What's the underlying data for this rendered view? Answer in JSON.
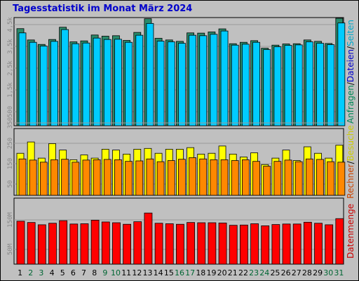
{
  "chart_data": {
    "title": "Tagesstatistik im Monat März 2024",
    "type": "bar",
    "days": [
      "1",
      "2",
      "3",
      "4",
      "5",
      "6",
      "7",
      "8",
      "9",
      "10",
      "11",
      "12",
      "13",
      "14",
      "15",
      "16",
      "17",
      "18",
      "19",
      "20",
      "21",
      "22",
      "23",
      "24",
      "25",
      "26",
      "27",
      "28",
      "29",
      "30",
      "31"
    ],
    "weekend_days": [
      "2",
      "3",
      "9",
      "10",
      "16",
      "17",
      "23",
      "24",
      "30",
      "31"
    ],
    "day_colors": {
      "weekday": "#000000",
      "weekend": "#006633"
    },
    "panels": [
      {
        "name": "top",
        "right_label": {
          "parts": [
            "Anfragen",
            "/",
            "Dateien",
            "/",
            "Seiten"
          ],
          "colors": [
            "#008855",
            "#000000",
            "#0000cc",
            "#000000",
            "#00aacc"
          ]
        },
        "ylim": [
          0,
          4500
        ],
        "yticks": [
          "500",
          "1,5k",
          "2,5k",
          "3,5k",
          "4,5k"
        ],
        "series": [
          {
            "name": "Anfragen",
            "color": "#2a8a6a",
            "values": [
              4120,
              3640,
              3450,
              3660,
              4180,
              3560,
              3600,
              3850,
              3800,
              3820,
              3620,
              3960,
              4540,
              3710,
              3640,
              3580,
              3940,
              3930,
              3980,
              4110,
              3480,
              3540,
              3610,
              3290,
              3420,
              3470,
              3480,
              3640,
              3580,
              3490,
              4560
            ]
          },
          {
            "name": "Dateien",
            "color": "#00ccff",
            "values": [
              3940,
              3540,
              3380,
              3580,
              4080,
              3480,
              3510,
              3720,
              3660,
              3670,
              3540,
              3840,
              4340,
              3590,
              3560,
              3500,
              3840,
              3820,
              3880,
              4020,
              3420,
              3460,
              3540,
              3230,
              3350,
              3410,
              3430,
              3560,
              3500,
              3440,
              4360
            ]
          }
        ]
      },
      {
        "name": "middle",
        "right_label": {
          "parts": [
            "Rechner",
            "/",
            "Besuche"
          ],
          "colors": [
            "#cc4400",
            "#000000",
            "#cccc00"
          ]
        },
        "ylim": [
          0,
          400
        ],
        "yticks": [
          "50",
          "150",
          "250",
          "350"
        ],
        "series": [
          {
            "name": "Besuche",
            "color": "#ffff00",
            "values": [
              260,
              330,
              230,
              320,
              280,
              220,
              250,
              230,
              285,
              280,
              255,
              285,
              290,
              260,
              285,
              285,
              295,
              255,
              260,
              305,
              255,
              237,
              263,
              190,
              230,
              280,
              215,
              300,
              260,
              230,
              310
            ]
          },
          {
            "name": "Rechner",
            "color": "#ff8800",
            "values": [
              225,
              218,
              205,
              220,
              223,
              205,
              218,
              220,
              222,
              220,
              210,
              213,
              225,
              208,
              215,
              223,
              233,
              225,
              220,
              220,
              215,
              220,
              210,
              180,
              210,
              218,
              208,
              225,
              222,
              208,
              205
            ]
          }
        ]
      },
      {
        "name": "bottom",
        "right_label": {
          "parts": [
            "Datenmenge"
          ],
          "colors": [
            "#cc0000"
          ]
        },
        "ylim": [
          0,
          250
        ],
        "yticks": [
          "50M",
          "150M"
        ],
        "series": [
          {
            "name": "Datenmenge",
            "color": "#ff0000",
            "values": [
              168,
              163,
              154,
              160,
              170,
              157,
              158,
              172,
              165,
              162,
              156,
              166,
              200,
              160,
              158,
              156,
              163,
              162,
              162,
              161,
              152,
              153,
              158,
              150,
              155,
              157,
              157,
              164,
              160,
              154,
              178
            ]
          }
        ]
      }
    ]
  }
}
